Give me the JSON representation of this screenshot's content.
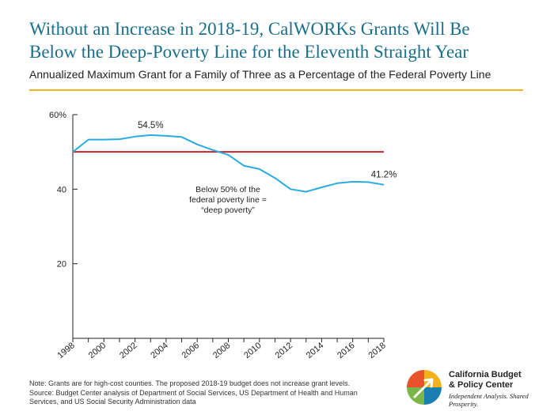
{
  "title_line1": "Without an Increase in 2018-19, CalWORKs Grants Will Be",
  "title_line2": "Below the Deep-Poverty Line for the Eleventh Straight Year",
  "subtitle": "Annualized Maximum Grant for a Family of Three as a Percentage of the Federal Poverty Line",
  "note_lines": [
    "Note: Grants are for high-cost counties. The proposed 2018-19 budget does not increase grant levels.",
    "Source: Budget Center analysis of Department of Social Services, US Department of Health and Human",
    "Services, and US Social Security Administration data"
  ],
  "logo": {
    "name_line1": "California Budget",
    "name_line2": "& Policy Center",
    "tagline": "Independent Analysis. Shared Prosperity."
  },
  "colors": {
    "title": "#1a6f8a",
    "rule": "#f3b21b",
    "grant_line": "#29abe2",
    "threshold_line": "#c0272d",
    "axis": "#222222"
  },
  "chart_data": {
    "type": "line",
    "x": [
      1998,
      1999,
      2000,
      2001,
      2002,
      2003,
      2004,
      2005,
      2006,
      2007,
      2008,
      2009,
      2010,
      2011,
      2012,
      2013,
      2014,
      2015,
      2016,
      2017,
      2018
    ],
    "series": [
      {
        "values": [
          50.0,
          53.3,
          53.3,
          53.4,
          54.1,
          54.5,
          54.3,
          54.0,
          52.0,
          50.5,
          49.2,
          46.3,
          45.4,
          43.0,
          40.0,
          39.3,
          40.5,
          41.6,
          42.0,
          41.9,
          41.2
        ],
        "color": "#29abe2"
      }
    ],
    "reference_line": {
      "value": 50,
      "color": "#c0272d"
    },
    "xlim": [
      1998,
      2018
    ],
    "ylim": [
      0,
      60
    ],
    "yticks": [
      20,
      40,
      60
    ],
    "ytick_labels": [
      "20",
      "40",
      "60%"
    ],
    "xticks": [
      1998,
      2000,
      2002,
      2004,
      2006,
      2008,
      2010,
      2012,
      2014,
      2016,
      2018
    ],
    "xtick_labels": [
      "1998",
      "2000",
      "2002",
      "2004",
      "2006",
      "2008",
      "2010",
      "2012",
      "2014",
      "2016",
      "2018"
    ],
    "data_labels": [
      {
        "x": 2003,
        "y": 54.5,
        "text": "54.5%"
      },
      {
        "x": 2018,
        "y": 41.2,
        "text": "41.2%"
      }
    ],
    "annotation_lines": [
      "Below 50% of the",
      "federal poverty line =",
      "“deep poverty”"
    ],
    "grid": false
  }
}
